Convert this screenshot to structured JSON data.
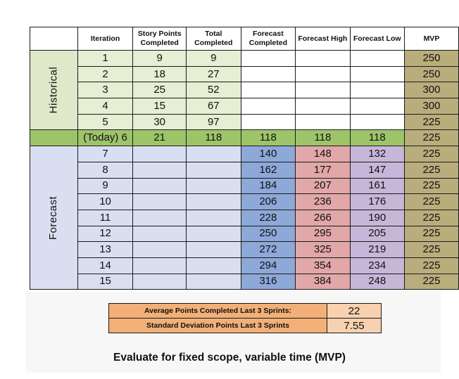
{
  "headers": {
    "iteration": "Iteration",
    "story_points": "Story Points Completed",
    "total": "Total Completed",
    "forecast_completed": "Forecast Completed",
    "forecast_high": "Forecast High",
    "forecast_low": "Forecast Low",
    "mvp": "MVP"
  },
  "bands": {
    "historical": "Historical",
    "forecast": "Forecast"
  },
  "historical_rows": [
    {
      "iteration": "1",
      "story_points": "9",
      "total": "9",
      "mvp": "250"
    },
    {
      "iteration": "2",
      "story_points": "18",
      "total": "27",
      "mvp": "250"
    },
    {
      "iteration": "3",
      "story_points": "25",
      "total": "52",
      "mvp": "300"
    },
    {
      "iteration": "4",
      "story_points": "15",
      "total": "67",
      "mvp": "300"
    },
    {
      "iteration": "5",
      "story_points": "30",
      "total": "97",
      "mvp": "225"
    }
  ],
  "today_row": {
    "iteration": "(Today) 6",
    "story_points": "21",
    "total": "118",
    "forecast_completed": "118",
    "forecast_high": "118",
    "forecast_low": "118",
    "mvp": "225"
  },
  "forecast_rows": [
    {
      "iteration": "7",
      "forecast_completed": "140",
      "forecast_high": "148",
      "forecast_low": "132",
      "mvp": "225"
    },
    {
      "iteration": "8",
      "forecast_completed": "162",
      "forecast_high": "177",
      "forecast_low": "147",
      "mvp": "225"
    },
    {
      "iteration": "9",
      "forecast_completed": "184",
      "forecast_high": "207",
      "forecast_low": "161",
      "mvp": "225"
    },
    {
      "iteration": "10",
      "forecast_completed": "206",
      "forecast_high": "236",
      "forecast_low": "176",
      "mvp": "225"
    },
    {
      "iteration": "11",
      "forecast_completed": "228",
      "forecast_high": "266",
      "forecast_low": "190",
      "mvp": "225"
    },
    {
      "iteration": "12",
      "forecast_completed": "250",
      "forecast_high": "295",
      "forecast_low": "205",
      "mvp": "225"
    },
    {
      "iteration": "13",
      "forecast_completed": "272",
      "forecast_high": "325",
      "forecast_low": "219",
      "mvp": "225"
    },
    {
      "iteration": "14",
      "forecast_completed": "294",
      "forecast_high": "354",
      "forecast_low": "234",
      "mvp": "225"
    },
    {
      "iteration": "15",
      "forecast_completed": "316",
      "forecast_high": "384",
      "forecast_low": "248",
      "mvp": "225"
    }
  ],
  "summary": {
    "avg_label": "Average Points Completed Last 3 Sprints:",
    "avg_value": "22",
    "std_label": "Standard Deviation Points  Last 3 Sprints",
    "std_value": "7.55"
  },
  "caption": "Evaluate for fixed scope, variable time (MVP)",
  "colors": {
    "historical": "#e6eed3",
    "today": "#9ec46a",
    "forecast_completed": "#8ea8d8",
    "forecast_high": "#e2a7a9",
    "forecast_low": "#c8b6d8",
    "mvp": "#b9ad7c",
    "summary_label": "#f2b078"
  }
}
